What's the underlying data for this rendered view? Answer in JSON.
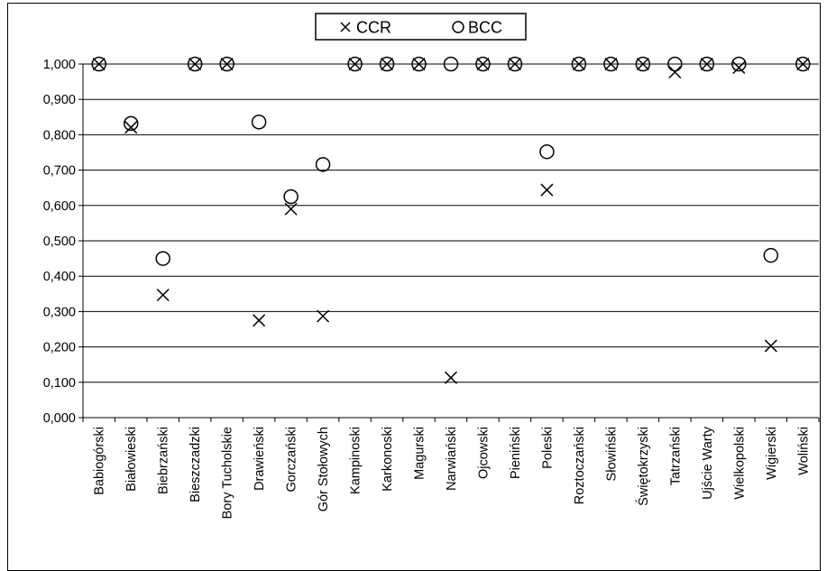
{
  "chart_data": {
    "type": "scatter",
    "categories": [
      "Babiogórski",
      "Białowieski",
      "Biebrzański",
      "Bieszczadzki",
      "Bory Tucholskie",
      "Drawieński",
      "Gorczański",
      "Gór Stołowych",
      "Kampinoski",
      "Karkonoski",
      "Magurski",
      "Narwiański",
      "Ojcowski",
      "Pieniński",
      "Poleski",
      "Roztoczański",
      "Słowiński",
      "Świętokrzyski",
      "Tatrzański",
      "Ujście Warty",
      "Wielkopolski",
      "Wigierski",
      "Woliński"
    ],
    "series": [
      {
        "name": "CCR",
        "marker": "x",
        "values": [
          1.0,
          0.821,
          0.347,
          1.0,
          1.0,
          0.275,
          0.59,
          0.287,
          1.0,
          1.0,
          1.0,
          0.113,
          1.0,
          1.0,
          0.644,
          1.0,
          1.0,
          1.0,
          0.977,
          1.0,
          0.99,
          0.203,
          1.0
        ]
      },
      {
        "name": "BCC",
        "marker": "o",
        "values": [
          1.0,
          0.832,
          0.45,
          1.0,
          1.0,
          0.836,
          0.625,
          0.716,
          1.0,
          1.0,
          1.0,
          1.0,
          1.0,
          1.0,
          0.752,
          1.0,
          1.0,
          1.0,
          1.0,
          1.0,
          1.0,
          0.459,
          1.0
        ]
      }
    ],
    "y_ticks": [
      "0,000",
      "0,100",
      "0,200",
      "0,300",
      "0,400",
      "0,500",
      "0,600",
      "0,700",
      "0,800",
      "0,900",
      "1,000"
    ],
    "ylim": [
      0,
      1
    ],
    "grid": true,
    "legend_position": "top-center",
    "title": "",
    "xlabel": "",
    "ylabel": ""
  }
}
